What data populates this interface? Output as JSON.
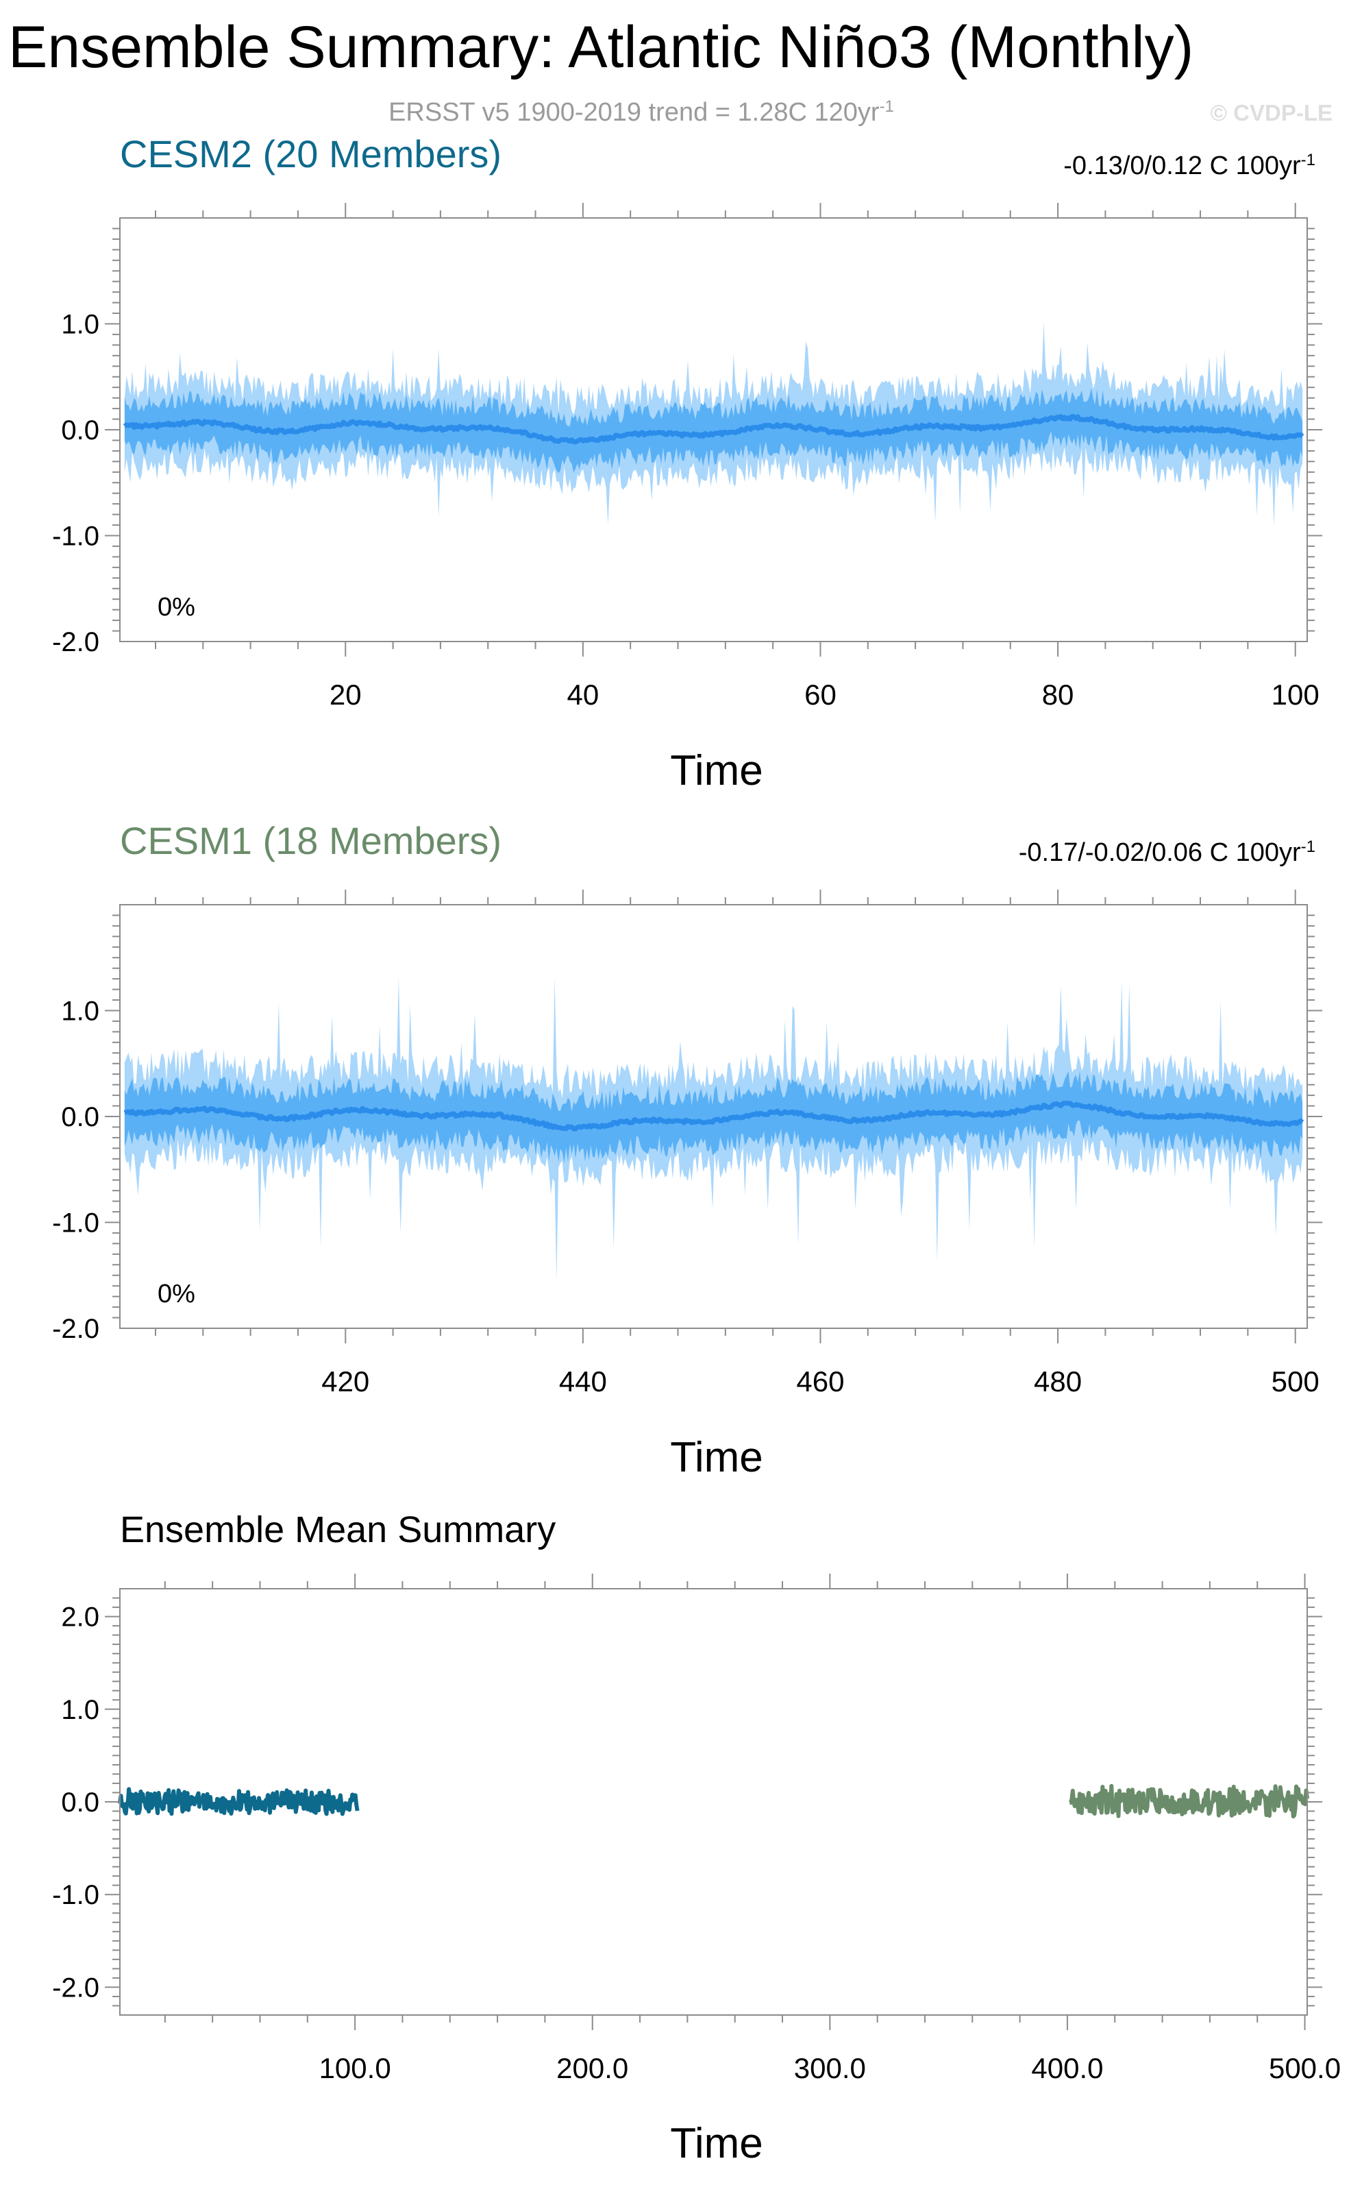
{
  "page": {
    "title": "Ensemble Summary: Atlantic Niño3 (Monthly)",
    "subtitle_main": "ERSST v5 1900-2019 trend = 1.28C 120yr",
    "subtitle_sup": "-1",
    "watermark": "© CVDP-LE"
  },
  "colors": {
    "spread_light": "#a9d6fb",
    "spread_mid": "#59b0f5",
    "ens_mean": "#2b8cea",
    "cesm2": "#0e6a8c",
    "cesm1": "#6a8c6a",
    "frame": "#000000"
  },
  "chart_data": [
    {
      "type": "area",
      "panel": "cesm2",
      "title": "CESM2 (20 Members)",
      "trend_main": "-0.13/0/0.12 C 100yr",
      "trend_sup": "-1",
      "percent_label": "0%",
      "xlabel": "Time",
      "ylabel": "",
      "xlim": [
        1,
        101
      ],
      "ylim": [
        -2.0,
        2.0
      ],
      "xticks": [
        20,
        40,
        60,
        80,
        100
      ],
      "xtick_labels": [
        "20",
        "40",
        "60",
        "80",
        "100"
      ],
      "yticks": [
        -2.0,
        -1.0,
        0.0,
        1.0
      ],
      "ytick_labels": [
        "-2.0",
        "-1.0",
        "0.0",
        "1.0"
      ],
      "series": [
        {
          "role": "member-spread-outer",
          "amplitude": 0.45,
          "peak_amplitude": 0.9
        },
        {
          "role": "member-spread-inner",
          "amplitude": 0.25
        },
        {
          "role": "ensemble-mean",
          "amplitude": 0.07
        }
      ]
    },
    {
      "type": "area",
      "panel": "cesm1",
      "title": "CESM1 (18 Members)",
      "trend_main": "-0.17/-0.02/0.06 C 100yr",
      "trend_sup": "-1",
      "percent_label": "0%",
      "xlabel": "Time",
      "ylabel": "",
      "xlim": [
        401,
        501
      ],
      "ylim": [
        -2.0,
        2.0
      ],
      "xticks": [
        420,
        440,
        460,
        480,
        500
      ],
      "xtick_labels": [
        "420",
        "440",
        "460",
        "480",
        "500"
      ],
      "yticks": [
        -2.0,
        -1.0,
        0.0,
        1.0
      ],
      "ytick_labels": [
        "-2.0",
        "-1.0",
        "0.0",
        "1.0"
      ],
      "series": [
        {
          "role": "member-spread-outer",
          "amplitude": 0.5,
          "peak_amplitude": 1.4
        },
        {
          "role": "member-spread-inner",
          "amplitude": 0.28
        },
        {
          "role": "ensemble-mean",
          "amplitude": 0.07
        }
      ]
    },
    {
      "type": "line",
      "panel": "ensemble-mean",
      "title": "Ensemble Mean Summary",
      "xlabel": "Time",
      "ylabel": "",
      "xlim": [
        1,
        501
      ],
      "ylim": [
        -2.3,
        2.3
      ],
      "xticks": [
        100,
        200,
        300,
        400,
        500
      ],
      "xtick_labels": [
        "100.0",
        "200.0",
        "300.0",
        "400.0",
        "500.0"
      ],
      "yticks": [
        -2.0,
        -1.0,
        0.0,
        1.0,
        2.0
      ],
      "ytick_labels": [
        "-2.0",
        "-1.0",
        "0.0",
        "1.0",
        "2.0"
      ],
      "series": [
        {
          "name": "CESM2",
          "x_range": [
            1,
            101
          ],
          "amplitude": 0.15,
          "color_key": "cesm2"
        },
        {
          "name": "CESM1",
          "x_range": [
            401,
            501
          ],
          "amplitude": 0.18,
          "color_key": "cesm1"
        }
      ]
    }
  ]
}
